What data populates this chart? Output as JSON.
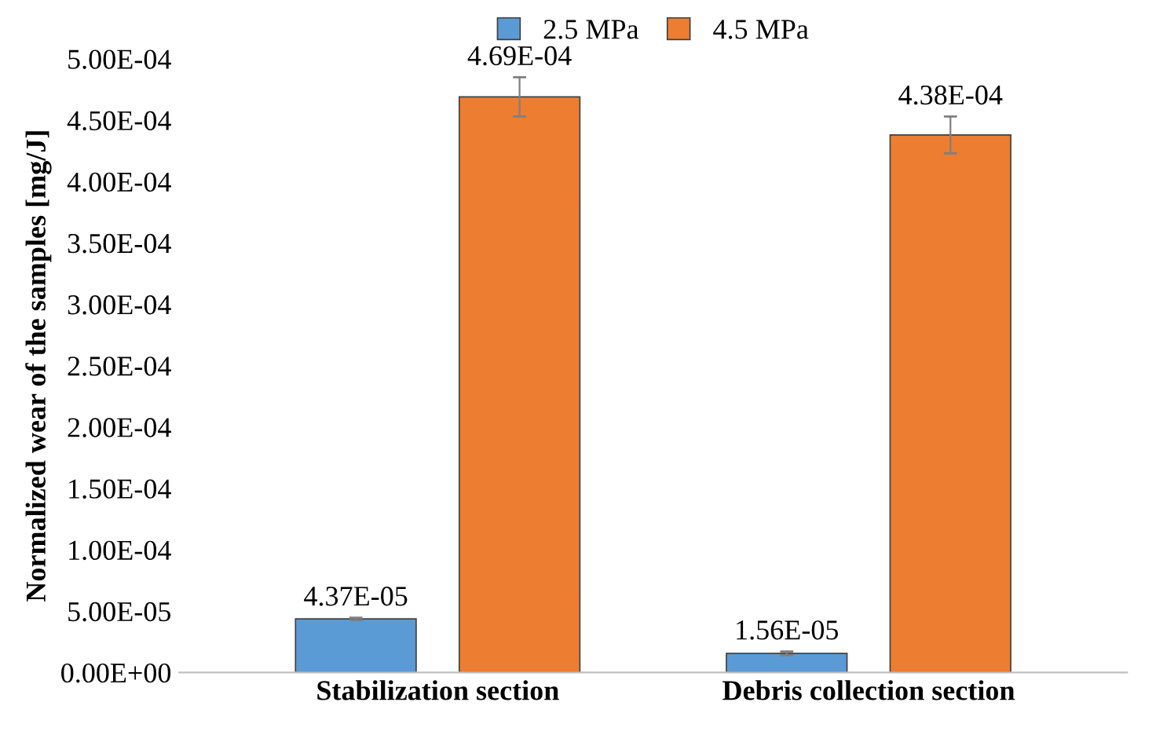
{
  "chart_data": {
    "type": "bar",
    "ylabel": "Normalized wear of the samples [mg/J]",
    "categories": [
      "Stabilization section",
      "Debris collection section"
    ],
    "series": [
      {
        "name": "2.5 MPa",
        "color": "#5b9bd5",
        "values": [
          4.37e-05,
          1.56e-05
        ],
        "errors": [
          1e-06,
          1.5e-06
        ],
        "value_labels": [
          "4.37E-05",
          "1.56E-05"
        ]
      },
      {
        "name": "4.5 MPa",
        "color": "#ed7d31",
        "values": [
          0.000469,
          0.000438
        ],
        "errors": [
          1.6e-05,
          1.5e-05
        ],
        "value_labels": [
          "4.69E-04",
          "4.38E-04"
        ]
      }
    ],
    "ylim": [
      0,
      0.0005
    ],
    "yticks": [
      {
        "value": 0,
        "label": "0.00E+00"
      },
      {
        "value": 5e-05,
        "label": "5.00E-05"
      },
      {
        "value": 0.0001,
        "label": "1.00E-04"
      },
      {
        "value": 0.00015,
        "label": "1.50E-04"
      },
      {
        "value": 0.0002,
        "label": "2.00E-04"
      },
      {
        "value": 0.00025,
        "label": "2.50E-04"
      },
      {
        "value": 0.0003,
        "label": "3.00E-04"
      },
      {
        "value": 0.00035,
        "label": "3.50E-04"
      },
      {
        "value": 0.0004,
        "label": "4.00E-04"
      },
      {
        "value": 0.00045,
        "label": "4.50E-04"
      },
      {
        "value": 0.0005,
        "label": "5.00E-04"
      }
    ],
    "grid": false,
    "legend": "top"
  }
}
